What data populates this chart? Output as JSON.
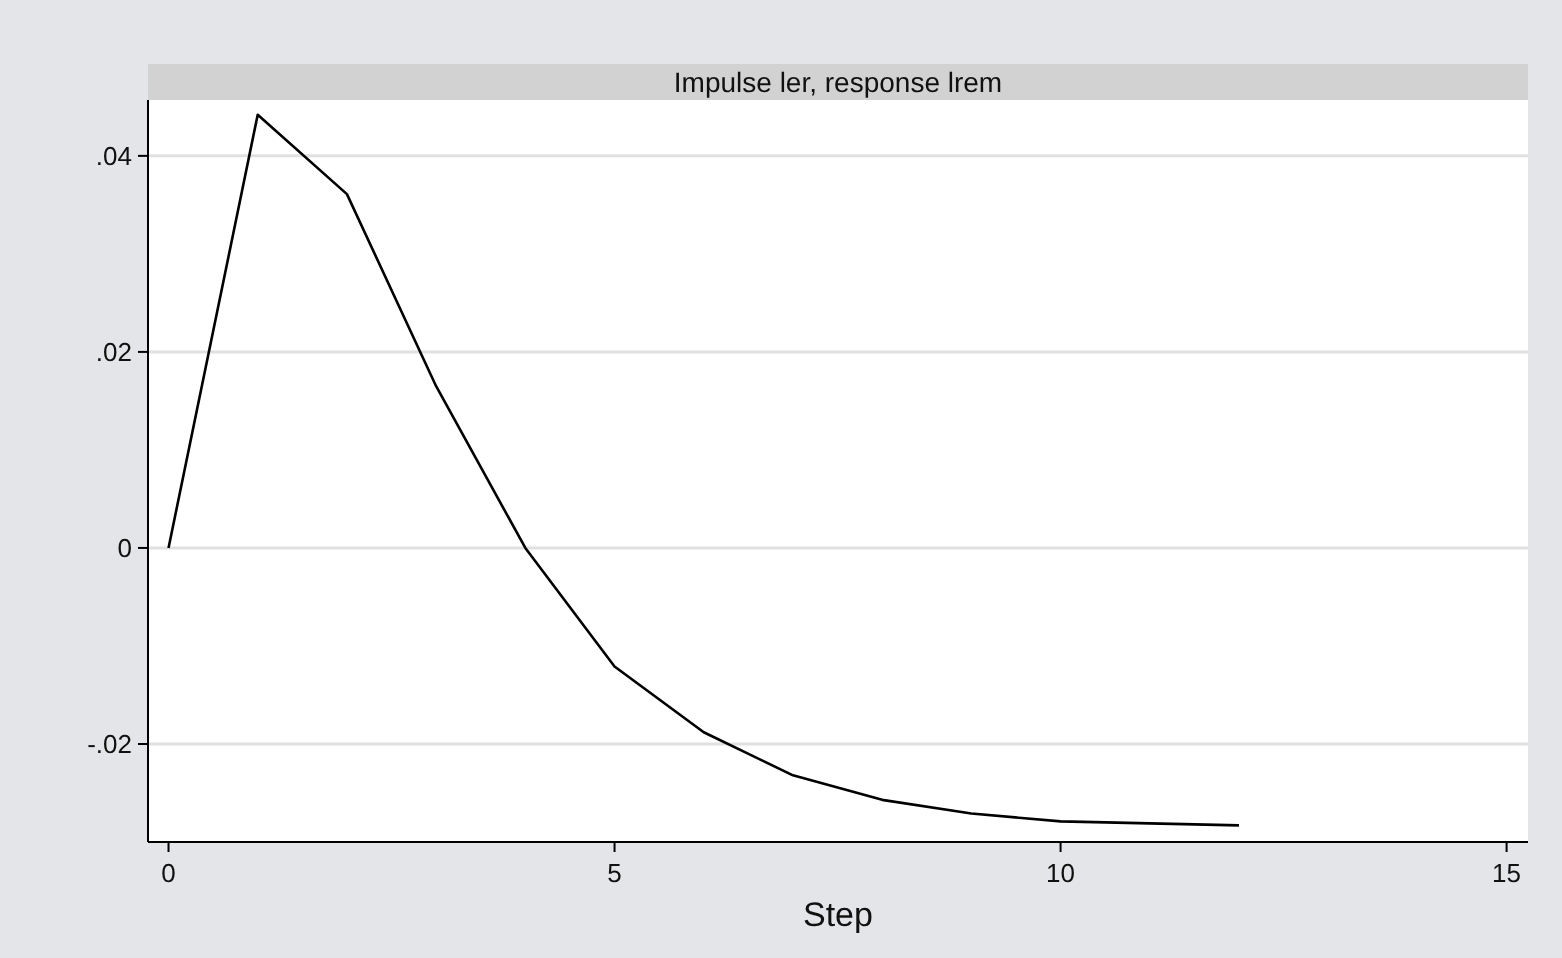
{
  "chart_data": {
    "type": "line",
    "title": "Impulse ler, response lrem",
    "xlabel": "Step",
    "x": [
      0,
      1,
      2,
      3,
      4,
      5,
      6,
      7,
      8,
      9,
      10,
      11,
      12
    ],
    "series": [
      {
        "color": "#000000",
        "values": [
          0,
          0.0442,
          0.0361,
          0.0165,
          0,
          -0.0121,
          -0.0188,
          -0.0232,
          -0.0257,
          -0.0271,
          -0.0279,
          -0.0281,
          -0.0283
        ]
      }
    ],
    "xlim": [
      -0.23,
      15.24
    ],
    "xticks": [
      0,
      5,
      10,
      15
    ],
    "ylim": [
      -0.03,
      0.0457
    ],
    "yticks": [
      {
        "value": -0.02,
        "label": "-.02"
      },
      {
        "value": 0,
        "label": "0"
      },
      {
        "value": 0.02,
        "label": ".02"
      },
      {
        "value": 0.04,
        "label": ".04"
      }
    ],
    "grid": "y",
    "marker": "none",
    "line_style": "solid"
  }
}
